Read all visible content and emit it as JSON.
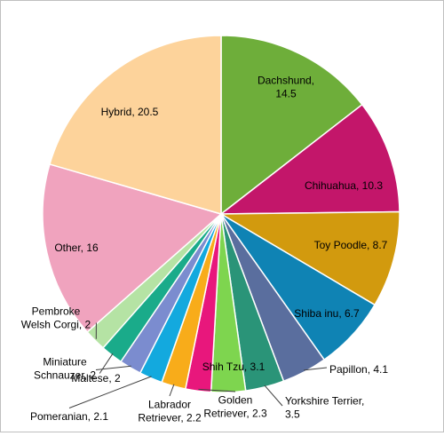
{
  "chart_data": {
    "type": "pie",
    "title": "",
    "start_angle_deg": 0,
    "direction": "clockwise",
    "slices": [
      {
        "label": "Dachshund",
        "value": 14.5,
        "text": [
          "Dachshund,",
          "14.5"
        ],
        "color": "#6eae3a"
      },
      {
        "label": "Chihuahua",
        "value": 10.3,
        "text": [
          "Chihuahua, 10.3"
        ],
        "color": "#c3166a"
      },
      {
        "label": "Toy Poodle",
        "value": 8.7,
        "text": [
          "Toy Poodle, 8.7"
        ],
        "color": "#d29a0e"
      },
      {
        "label": "Shiba inu",
        "value": 6.7,
        "text": [
          "Shiba inu, 6.7"
        ],
        "color": "#0f83b4"
      },
      {
        "label": "Papillon",
        "value": 4.1,
        "text": [
          "Papillon, 4.1"
        ],
        "color": "#5a6e9e"
      },
      {
        "label": "Yorkshire Terrier",
        "value": 3.5,
        "text": [
          "Yorkshire Terrier,",
          "3.5"
        ],
        "color": "#2a9478"
      },
      {
        "label": "Shih Tzu",
        "value": 3.1,
        "text": [
          "Shih Tzu, 3.1"
        ],
        "color": "#7ed54f"
      },
      {
        "label": "Golden Retriever",
        "value": 2.3,
        "text": [
          "Golden",
          "Retriever, 2.3"
        ],
        "color": "#e8177c"
      },
      {
        "label": "Labrador Retriever",
        "value": 2.2,
        "text": [
          "Labrador",
          "Retriever, 2.2"
        ],
        "color": "#f8ac1a"
      },
      {
        "label": "Pomeranian",
        "value": 2.1,
        "text": [
          "Pomeranian, 2.1"
        ],
        "color": "#13a9de"
      },
      {
        "label": "Maltese",
        "value": 2,
        "text": [
          "Maltese, 2"
        ],
        "color": "#7b8ccf"
      },
      {
        "label": "Miniature Schnauzer",
        "value": 2,
        "text": [
          "Miniature",
          "Schnauzer, 2"
        ],
        "color": "#1aab8a"
      },
      {
        "label": "Pembroke Welsh Corgi",
        "value": 2,
        "text": [
          "Pembroke",
          "Welsh Corgi, 2"
        ],
        "color": "#b5e3a4"
      },
      {
        "label": "Other",
        "value": 16,
        "text": [
          "Other, 16"
        ],
        "color": "#f0a3be"
      },
      {
        "label": "Hybrid",
        "value": 20.5,
        "text": [
          "Hybrid, 20.5"
        ],
        "color": "#fdd39b"
      }
    ],
    "legend": "none",
    "data_labels": "category-and-value"
  }
}
